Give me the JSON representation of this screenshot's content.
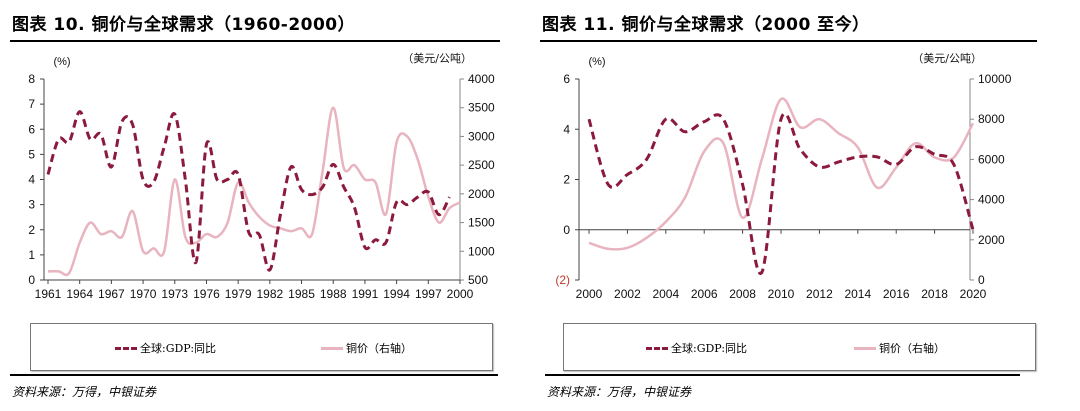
{
  "chart_data": [
    {
      "type": "line",
      "title": "图表 10. 铜价与全球需求（1960-2000）",
      "ylabel": "(%)",
      "y2label": "（美元/公吨）",
      "ylim": [
        0,
        8
      ],
      "y2lim": [
        500,
        4000
      ],
      "yticks": [
        "0",
        "1",
        "2",
        "3",
        "4",
        "5",
        "6",
        "7",
        "8"
      ],
      "y2ticks": [
        "500",
        "1000",
        "1500",
        "2000",
        "2500",
        "3000",
        "3500",
        "4000"
      ],
      "xticks": [
        "1961",
        "1964",
        "1967",
        "1970",
        "1973",
        "1976",
        "1979",
        "1982",
        "1985",
        "1988",
        "1991",
        "1994",
        "1997",
        "2000"
      ],
      "x": [
        1961,
        1962,
        1963,
        1964,
        1965,
        1966,
        1967,
        1968,
        1969,
        1970,
        1971,
        1972,
        1973,
        1974,
        1975,
        1976,
        1977,
        1978,
        1979,
        1980,
        1981,
        1982,
        1983,
        1984,
        1985,
        1986,
        1987,
        1988,
        1989,
        1990,
        1991,
        1992,
        1993,
        1994,
        1995,
        1996,
        1997,
        1998,
        1999,
        2000
      ],
      "series": [
        {
          "name": "全球:GDP:同比",
          "axis": "left",
          "style": "dashed",
          "color": "#8b1a3c",
          "values": [
            4.2,
            5.6,
            5.5,
            6.7,
            5.6,
            5.8,
            4.5,
            6.3,
            6.2,
            4.0,
            3.9,
            5.3,
            6.6,
            4.0,
            0.7,
            5.4,
            4.0,
            4.0,
            4.2,
            1.9,
            1.8,
            0.4,
            2.6,
            4.5,
            3.6,
            3.4,
            3.7,
            4.6,
            3.7,
            2.9,
            1.3,
            1.6,
            1.5,
            3.1,
            3.0,
            3.3,
            3.5,
            2.6,
            3.3,
            null
          ]
        },
        {
          "name": "铜价（右轴）",
          "axis": "right",
          "style": "solid",
          "color": "#e8b4bf",
          "values": [
            650,
            650,
            620,
            1150,
            1500,
            1300,
            1350,
            1250,
            1700,
            1000,
            1050,
            1000,
            2250,
            1250,
            1150,
            1300,
            1250,
            1500,
            2200,
            1850,
            1600,
            1450,
            1400,
            1350,
            1400,
            1300,
            2400,
            3500,
            2450,
            2500,
            2250,
            2200,
            1650,
            2900,
            3000,
            2600,
            1950,
            1500,
            1750,
            1850
          ]
        }
      ],
      "legend": "bottom",
      "source": "资料来源：万得，中银证券"
    },
    {
      "type": "line",
      "title": "图表 11. 铜价与全球需求（2000 至今）",
      "ylabel": "(%)",
      "y2label": "（美元/公吨）",
      "ylim": [
        -2,
        6
      ],
      "y2lim": [
        0,
        10000
      ],
      "yticks": [
        "(2)",
        "0",
        "2",
        "4",
        "6"
      ],
      "y2ticks": [
        "0",
        "2000",
        "4000",
        "6000",
        "8000",
        "10000"
      ],
      "xticks": [
        "2000",
        "2002",
        "2004",
        "2006",
        "2008",
        "2010",
        "2012",
        "2014",
        "2016",
        "2018",
        "2020"
      ],
      "x": [
        2000,
        2001,
        2002,
        2003,
        2004,
        2005,
        2006,
        2007,
        2008,
        2009,
        2010,
        2011,
        2012,
        2013,
        2014,
        2015,
        2016,
        2017,
        2018,
        2019,
        2020
      ],
      "series": [
        {
          "name": "全球:GDP:同比",
          "axis": "left",
          "style": "dashed",
          "color": "#8b1a3c",
          "values": [
            4.4,
            1.8,
            2.2,
            2.8,
            4.4,
            3.9,
            4.3,
            4.4,
            1.8,
            -1.7,
            4.4,
            3.2,
            2.5,
            2.7,
            2.9,
            2.9,
            2.6,
            3.3,
            3.0,
            2.6,
            0.0
          ]
        },
        {
          "name": "铜价（右轴）",
          "axis": "right",
          "style": "solid",
          "color": "#e8b4bf",
          "values": [
            1850,
            1550,
            1600,
            2100,
            2900,
            4100,
            6400,
            6800,
            3100,
            6000,
            9000,
            7600,
            8000,
            7300,
            6600,
            4600,
            5600,
            6800,
            6100,
            6100,
            7800
          ]
        }
      ],
      "legend": "bottom",
      "source": "资料来源：万得，中银证券"
    }
  ]
}
